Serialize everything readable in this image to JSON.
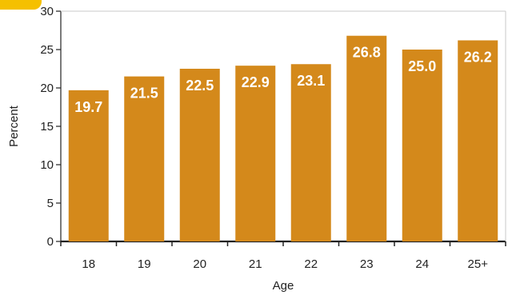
{
  "chart_data": {
    "type": "bar",
    "categories": [
      "18",
      "19",
      "20",
      "21",
      "22",
      "23",
      "24",
      "25+"
    ],
    "values": [
      19.7,
      21.5,
      22.5,
      22.9,
      23.1,
      26.8,
      25.0,
      26.2
    ],
    "value_labels": [
      "19.7",
      "21.5",
      "22.5",
      "22.9",
      "23.1",
      "26.8",
      "25.0",
      "26.2"
    ],
    "xlabel": "Age",
    "ylabel": "Percent",
    "ylim": [
      0,
      30
    ],
    "yticks": [
      "0",
      "5",
      "10",
      "15",
      "20",
      "25",
      "30"
    ],
    "grid": false,
    "bar_color": "#d4891b",
    "axis_color": "#222222",
    "accent_color": "#f5c000"
  }
}
